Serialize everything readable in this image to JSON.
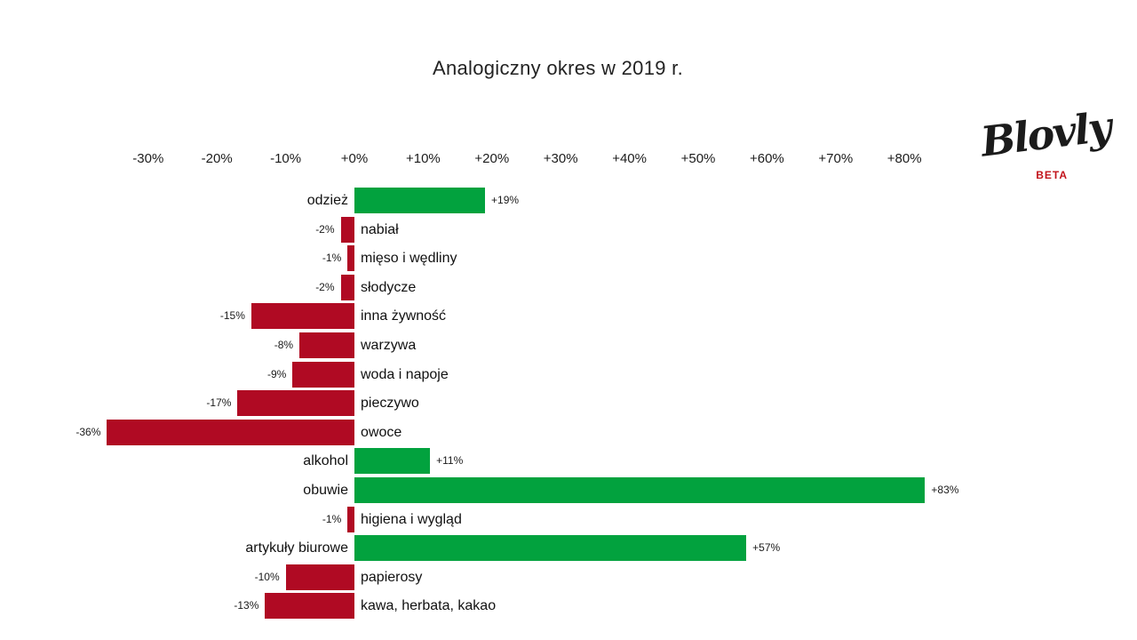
{
  "title": "Analogiczny okres w 2019 r.",
  "logo": {
    "text": "Blovly",
    "beta_label": "BETA"
  },
  "colors": {
    "positive_bar": "#02a23e",
    "negative_bar": "#b00a23",
    "beta_text": "#c2141c",
    "label_text": "#111111",
    "background": "#ffffff"
  },
  "chart_data": {
    "type": "bar",
    "orientation": "horizontal",
    "title": "Analogiczny okres w 2019 r.",
    "xlabel": "",
    "ylabel": "",
    "axis_range": [
      -30,
      80
    ],
    "grid": false,
    "legend": false,
    "axis_ticks": [
      "-30%",
      "-20%",
      "-10%",
      "+0%",
      "+10%",
      "+20%",
      "+30%",
      "+40%",
      "+50%",
      "+60%",
      "+70%",
      "+80%"
    ],
    "categories": [
      "odzież",
      "nabiał",
      "mięso i wędliny",
      "słodycze",
      "inna żywność",
      "warzywa",
      "woda i napoje",
      "pieczywo",
      "owoce",
      "alkohol",
      "obuwie",
      "higiena i wygląd",
      "artykuły biurowe",
      "papierosy",
      "kawa, herbata, kakao"
    ],
    "values": [
      19,
      -2,
      -1,
      -2,
      -15,
      -8,
      -9,
      -17,
      -36,
      11,
      83,
      -1,
      57,
      -10,
      -13
    ],
    "value_labels": [
      "+19%",
      "-2%",
      "-1%",
      "-2%",
      "-15%",
      "-8%",
      "-9%",
      "-17%",
      "-36%",
      "+11%",
      "+83%",
      "-1%",
      "+57%",
      "-10%",
      "-13%"
    ]
  }
}
